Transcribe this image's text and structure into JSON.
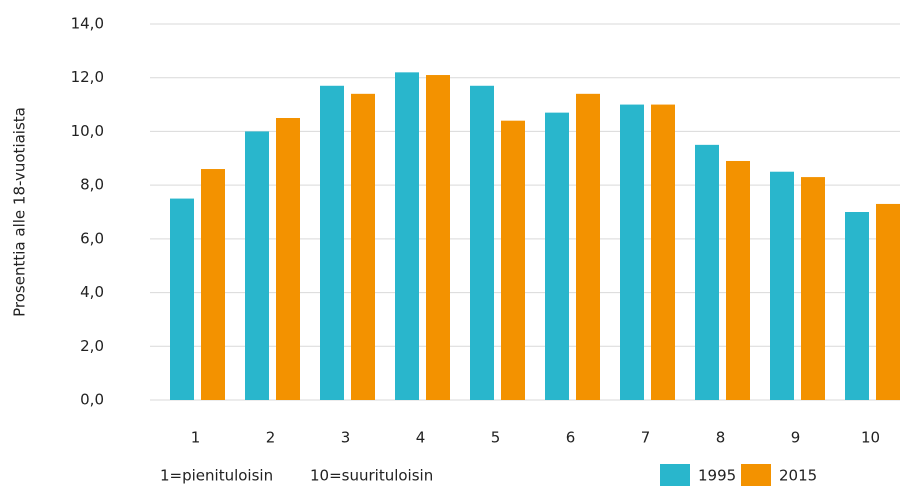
{
  "chart_data": {
    "type": "bar",
    "y_label": "Prosenttia alle 18-vuotiaista",
    "categories": [
      "1",
      "2",
      "3",
      "4",
      "5",
      "6",
      "7",
      "8",
      "9",
      "10"
    ],
    "series": [
      {
        "name": "1995",
        "color": "#29b6cc",
        "values": [
          7.5,
          10.0,
          11.7,
          12.2,
          11.7,
          10.7,
          11.0,
          9.5,
          8.5,
          7.0
        ]
      },
      {
        "name": "2015",
        "color": "#f39200",
        "values": [
          8.6,
          10.5,
          11.4,
          12.1,
          10.4,
          11.4,
          11.0,
          8.9,
          8.3,
          7.3
        ]
      }
    ],
    "ylim": [
      0,
      14
    ],
    "yticks": [
      {
        "value": 0,
        "label": "0,0"
      },
      {
        "value": 2,
        "label": "2,0"
      },
      {
        "value": 4,
        "label": "4,0"
      },
      {
        "value": 6,
        "label": "6,0"
      },
      {
        "value": 8,
        "label": "8,0"
      },
      {
        "value": 10,
        "label": "10,0"
      },
      {
        "value": 12,
        "label": "12,0"
      },
      {
        "value": 14,
        "label": "14,0"
      }
    ],
    "grid": true,
    "annotations": [
      "1=pienituloisin",
      "10=suurituloisin"
    ]
  }
}
